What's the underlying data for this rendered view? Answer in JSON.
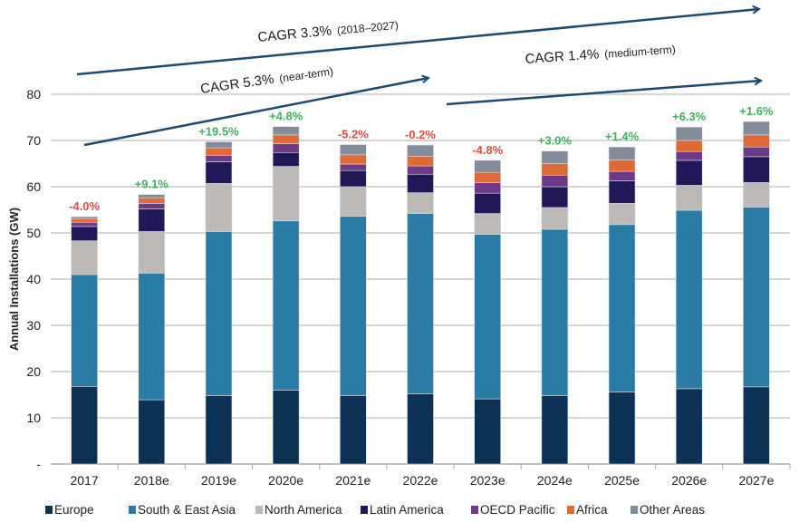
{
  "chart_data": {
    "type": "bar",
    "stacked": true,
    "title": "",
    "xlabel": "",
    "ylabel": "Annual Installations (GW)",
    "ylim": [
      0,
      80
    ],
    "yticks": [
      0,
      10,
      20,
      30,
      40,
      50,
      60,
      70,
      80
    ],
    "ytick_labels": [
      "-",
      "10",
      "20",
      "30",
      "40",
      "50",
      "60",
      "70",
      "80"
    ],
    "grid": true,
    "legend_position": "bottom",
    "categories": [
      "2017",
      "2018e",
      "2019e",
      "2020e",
      "2021e",
      "2022e",
      "2023e",
      "2024e",
      "2025e",
      "2026e",
      "2027e"
    ],
    "series": [
      {
        "name": "Europe",
        "color": "#0b3254",
        "values": [
          16.8,
          13.9,
          14.8,
          16.0,
          14.8,
          15.2,
          14.1,
          14.8,
          15.6,
          16.3,
          16.7
        ]
      },
      {
        "name": "South & East Asia",
        "color": "#2a7ca6",
        "values": [
          24.2,
          27.4,
          35.5,
          36.6,
          38.8,
          39.0,
          35.6,
          36.0,
          36.2,
          38.6,
          38.9
        ]
      },
      {
        "name": "North America",
        "color": "#bdb9b6",
        "values": [
          7.3,
          9.0,
          10.4,
          11.8,
          6.4,
          4.5,
          4.5,
          4.7,
          4.6,
          5.4,
          5.3
        ]
      },
      {
        "name": "Latin America",
        "color": "#221858",
        "values": [
          3.1,
          4.9,
          4.7,
          3.0,
          3.5,
          4.0,
          4.4,
          4.5,
          4.9,
          5.4,
          5.6
        ]
      },
      {
        "name": "OECD Pacific",
        "color": "#6e3a87",
        "values": [
          0.9,
          1.2,
          1.4,
          1.9,
          1.4,
          1.8,
          2.3,
          2.5,
          2.0,
          1.9,
          2.1
        ]
      },
      {
        "name": "Africa",
        "color": "#e06a35",
        "values": [
          0.7,
          1.2,
          1.6,
          1.9,
          2.0,
          2.1,
          2.2,
          2.5,
          2.5,
          2.4,
          2.6
        ]
      },
      {
        "name": "Other Areas",
        "color": "#848c99",
        "values": [
          0.5,
          0.7,
          1.3,
          1.8,
          2.2,
          2.4,
          2.6,
          2.7,
          2.8,
          2.9,
          2.9
        ]
      }
    ],
    "growth_labels": [
      "-4.0%",
      "+9.1%",
      "+19.5%",
      "+4.8%",
      "-5.2%",
      "-0.2%",
      "-4.8%",
      "+3.0%",
      "+1.4%",
      "+6.3%",
      "+1.6%"
    ],
    "growth_colors": {
      "positive": "#3cb55a",
      "negative": "#f0473e"
    },
    "annotations": [
      {
        "label": "CAGR 3.3%",
        "sub": "(2018–2027)",
        "from": "2017",
        "to": "2027e"
      },
      {
        "label": "CAGR 5.3%",
        "sub": "(near-term)",
        "from": "2017",
        "to": "2022e"
      },
      {
        "label": "CAGR 1.4%",
        "sub": "(medium-term)",
        "from": "2022e",
        "to": "2027e"
      }
    ],
    "arrow_color": "#1b4a72"
  }
}
